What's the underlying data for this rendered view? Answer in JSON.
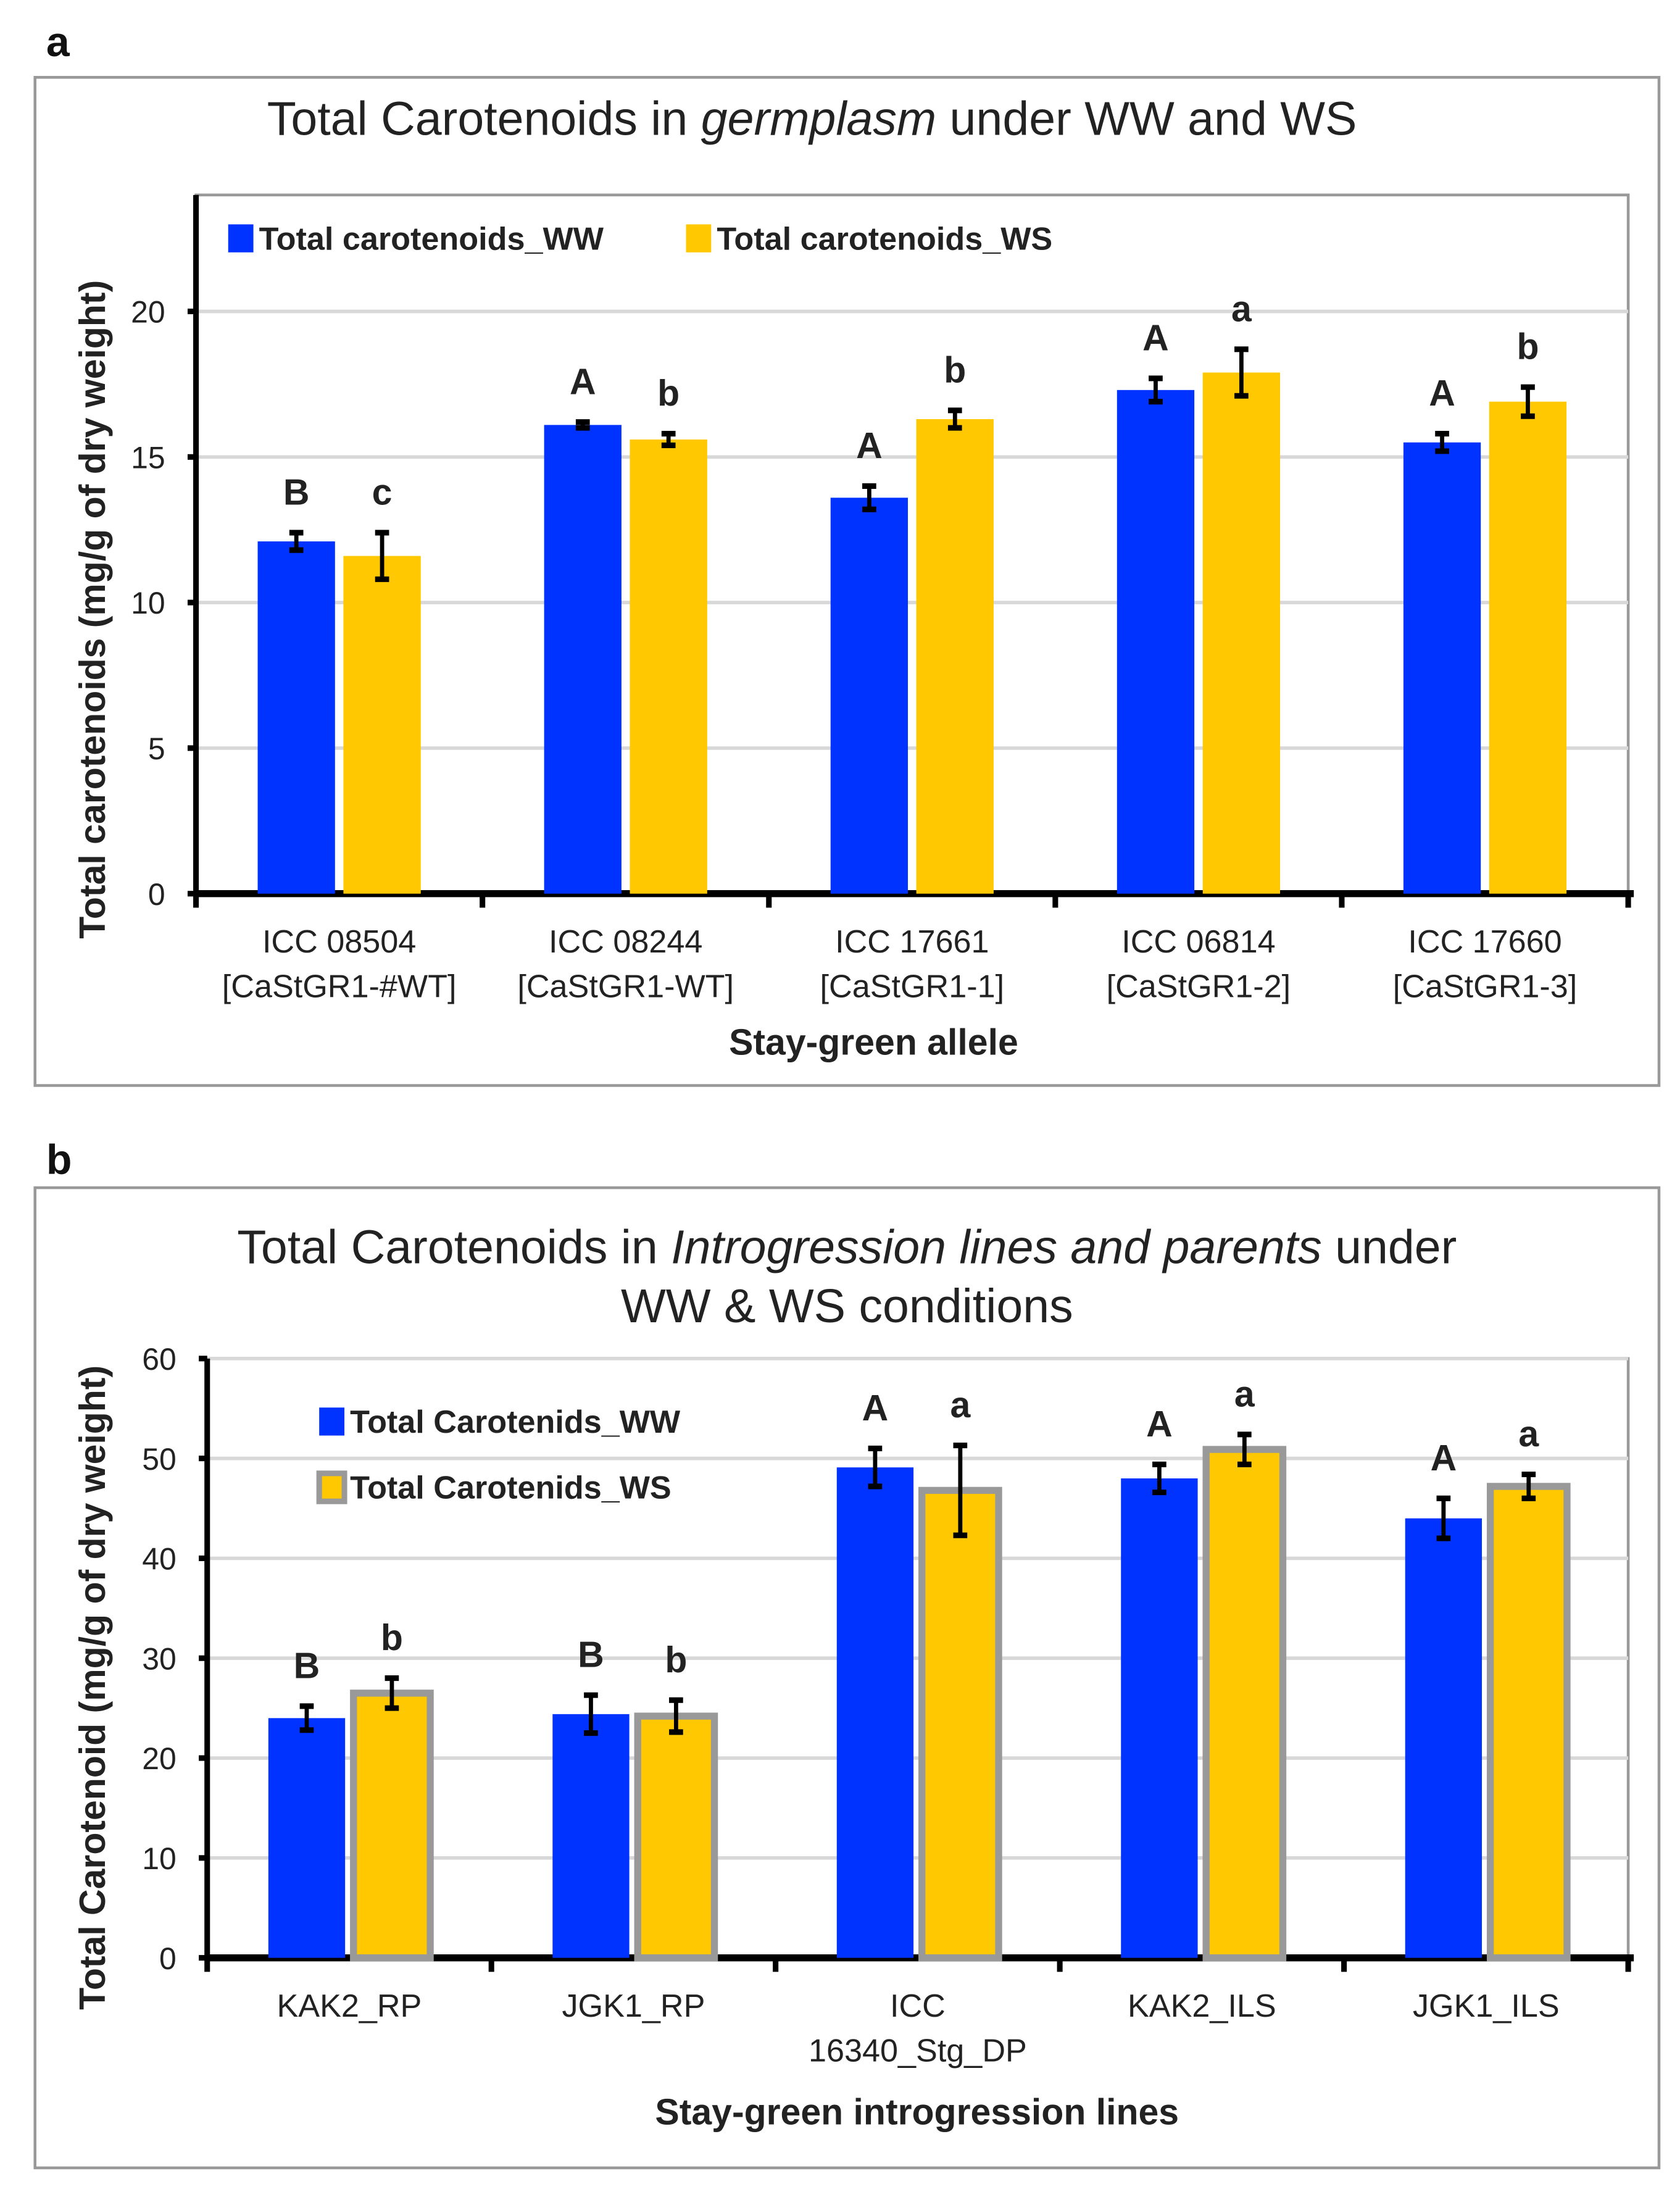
{
  "chart_data": [
    {
      "type": "bar",
      "panel_label": "a",
      "title_pre": "Total Carotenoids in ",
      "title_italic": "germplasm",
      "title_post": " under WW and WS",
      "xlabel": "Stay-green allele",
      "ylabel": "Total carotenoids (mg/g of dry weight)",
      "ylim": [
        0,
        24
      ],
      "yticks": [
        0,
        5,
        10,
        15,
        20
      ],
      "grid": true,
      "legend_placement": "top-left",
      "categories": [
        [
          "ICC 08504",
          "[CaStGR1-#WT]"
        ],
        [
          "ICC 08244",
          "[CaStGR1-WT]"
        ],
        [
          "ICC 17661",
          "[CaStGR1-1]"
        ],
        [
          "ICC 06814",
          "[CaStGR1-2]"
        ],
        [
          "ICC 17660",
          "[CaStGR1-3]"
        ]
      ],
      "series": [
        {
          "name": "Total carotenoids_WW",
          "color": "#0033FF",
          "values": [
            12.1,
            16.1,
            13.6,
            17.3,
            15.5
          ],
          "errors": [
            0.3,
            0.1,
            0.4,
            0.4,
            0.3
          ],
          "letters": [
            "B",
            "A",
            "A",
            "A",
            "A"
          ]
        },
        {
          "name": "Total carotenoids_WS",
          "color": "#FFC800",
          "values": [
            11.6,
            15.6,
            16.3,
            17.9,
            16.9
          ],
          "errors": [
            0.8,
            0.2,
            0.3,
            0.8,
            0.5
          ],
          "letters": [
            "c",
            "b",
            "b",
            "a",
            "b"
          ]
        }
      ]
    },
    {
      "type": "bar",
      "panel_label": "b",
      "title_pre": "Total Carotenoids in ",
      "title_italic": "Introgression lines and parents",
      "title_post": " under",
      "title_line2": "WW & WS conditions",
      "xlabel": "Stay-green introgression lines",
      "ylabel": "Total Carotenoid (mg/g of dry weight)",
      "ylim": [
        0,
        60
      ],
      "yticks": [
        0,
        10,
        20,
        30,
        40,
        50,
        60
      ],
      "grid": true,
      "legend_placement": "top-left",
      "categories": [
        [
          "KAK2_RP"
        ],
        [
          "JGK1_RP"
        ],
        [
          "ICC",
          "16340_Stg_DP"
        ],
        [
          "KAK2_ILS"
        ],
        [
          "JGK1_ILS"
        ]
      ],
      "series": [
        {
          "name": "Total Carotenids_WW",
          "color": "#0033FF",
          "values": [
            24.0,
            24.4,
            49.1,
            48.0,
            44.0
          ],
          "errors": [
            1.2,
            1.9,
            1.9,
            1.4,
            2.0
          ],
          "letters": [
            "B",
            "B",
            "A",
            "A",
            "A"
          ]
        },
        {
          "name": "Total Carotenids_WS",
          "color": "#FFC800",
          "values": [
            26.5,
            24.2,
            46.8,
            50.9,
            47.2
          ],
          "errors": [
            1.5,
            1.6,
            4.5,
            1.5,
            1.2
          ],
          "letters": [
            "b",
            "b",
            "a",
            "a",
            "a"
          ]
        }
      ]
    }
  ]
}
